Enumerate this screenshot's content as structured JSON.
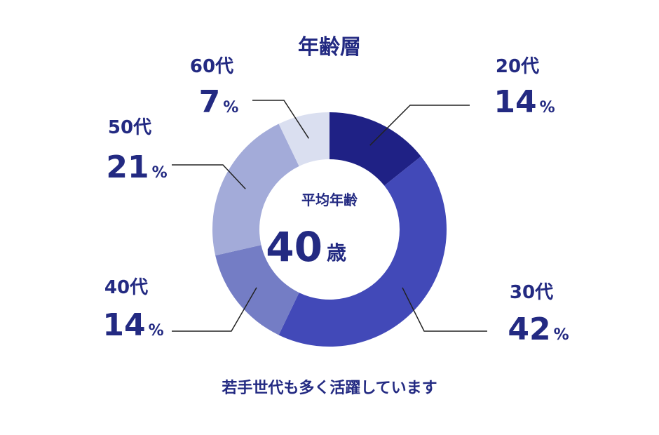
{
  "chart_data": {
    "type": "pie",
    "title": "年齢層",
    "categories": [
      "20代",
      "30代",
      "40代",
      "50代",
      "60代"
    ],
    "values": [
      14,
      42,
      14,
      21,
      7
    ],
    "unit": "%",
    "colors": [
      "#1f2185",
      "#4249b8",
      "#747dc5",
      "#a3abd9",
      "#dadff0"
    ],
    "center_label": "平均年齢",
    "center_value": 40,
    "center_unit": "歳",
    "caption": "若手世代も多く活躍しています"
  }
}
